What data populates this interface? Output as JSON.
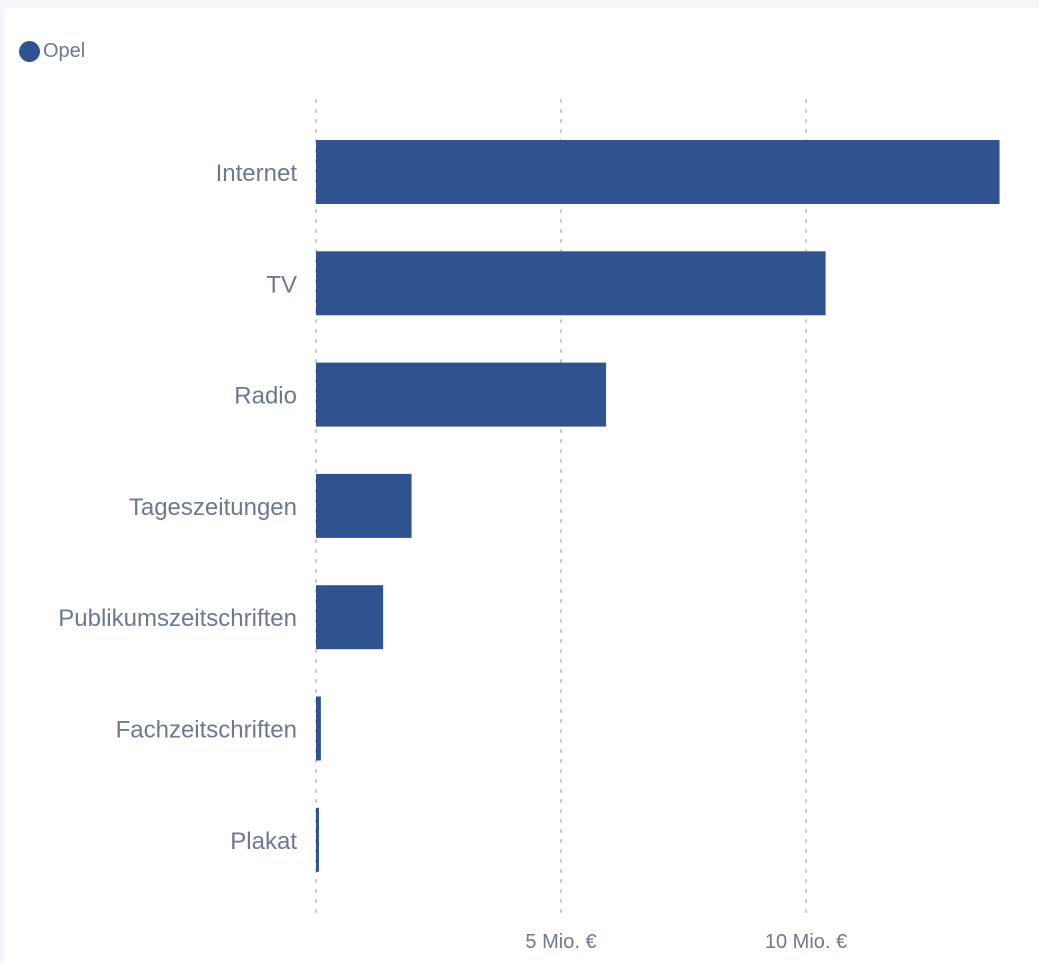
{
  "colors": {
    "bar": "#30538f",
    "grid": "#c4c9d4",
    "text": "#6e7891"
  },
  "chart_data": {
    "type": "bar",
    "orientation": "horizontal",
    "categories": [
      "Internet",
      "TV",
      "Radio",
      "Tageszeitungen",
      "Publikumszeitschriften",
      "Fachzeitschriften",
      "Plakat"
    ],
    "series": [
      {
        "name": "Opel",
        "values": [
          13.95,
          10.4,
          5.92,
          1.95,
          1.37,
          0.1,
          0.06
        ]
      }
    ],
    "xlim": [
      0,
      14
    ],
    "xticks": [
      {
        "value": 5,
        "label": "5 Mio. €"
      },
      {
        "value": 10,
        "label": "10 Mio. €"
      }
    ],
    "grid": true,
    "legend": "top-left"
  }
}
